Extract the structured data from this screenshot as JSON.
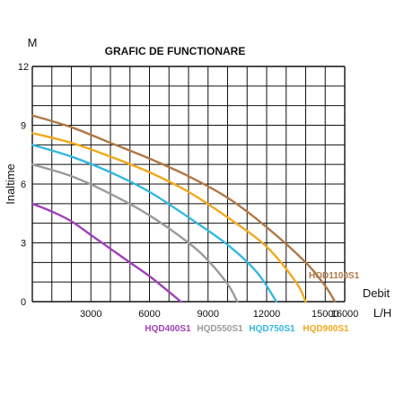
{
  "chart_data": {
    "type": "line",
    "title": "GRAFIC DE FUNCTIONARE",
    "ylabel": "Inaltime",
    "yunit": "M",
    "xlabel": "Debit",
    "xunit": "L/H",
    "xlim": [
      0,
      16000
    ],
    "ylim": [
      0,
      12
    ],
    "grid": true,
    "xticks": [
      3000,
      6000,
      9000,
      12000,
      15000,
      16000
    ],
    "yticks": [
      0,
      3,
      6,
      9,
      12
    ],
    "series": [
      {
        "name": "HQD400S1",
        "color": "#a040b8",
        "points": [
          [
            0,
            5.0
          ],
          [
            1000,
            4.6
          ],
          [
            2000,
            4.1
          ],
          [
            3000,
            3.4
          ],
          [
            4000,
            2.7
          ],
          [
            5000,
            2.0
          ],
          [
            6000,
            1.3
          ],
          [
            7000,
            0.5
          ],
          [
            7600,
            0
          ]
        ]
      },
      {
        "name": "HQD550S1",
        "color": "#9a9a9a",
        "points": [
          [
            0,
            7.0
          ],
          [
            2000,
            6.4
          ],
          [
            4000,
            5.5
          ],
          [
            6000,
            4.4
          ],
          [
            8000,
            3.0
          ],
          [
            9000,
            2.1
          ],
          [
            10000,
            0.9
          ],
          [
            10500,
            0
          ]
        ]
      },
      {
        "name": "HQD750S1",
        "color": "#33b8e0",
        "points": [
          [
            0,
            8.0
          ],
          [
            2000,
            7.4
          ],
          [
            4000,
            6.6
          ],
          [
            6000,
            5.6
          ],
          [
            8000,
            4.3
          ],
          [
            10000,
            2.9
          ],
          [
            11500,
            1.5
          ],
          [
            12500,
            0
          ]
        ]
      },
      {
        "name": "HQD900S1",
        "color": "#f2a81c",
        "points": [
          [
            0,
            8.6
          ],
          [
            2000,
            8.1
          ],
          [
            4000,
            7.4
          ],
          [
            6000,
            6.6
          ],
          [
            8000,
            5.6
          ],
          [
            10000,
            4.3
          ],
          [
            12000,
            2.8
          ],
          [
            13500,
            1.0
          ],
          [
            14000,
            0
          ]
        ]
      },
      {
        "name": "HQD1100S1",
        "color": "#b07848",
        "points": [
          [
            0,
            9.5
          ],
          [
            2000,
            8.9
          ],
          [
            4000,
            8.1
          ],
          [
            6000,
            7.3
          ],
          [
            8000,
            6.4
          ],
          [
            10000,
            5.3
          ],
          [
            12000,
            3.8
          ],
          [
            14000,
            2.0
          ],
          [
            15000,
            0.8
          ],
          [
            15500,
            0
          ]
        ]
      }
    ],
    "legend": [
      {
        "label": "HQD400S1",
        "color": "#a040b8"
      },
      {
        "label": "HQD550S1",
        "color": "#9a9a9a"
      },
      {
        "label": "HQD750S1",
        "color": "#33b8e0"
      },
      {
        "label": "HQD900S1",
        "color": "#f2a81c"
      }
    ],
    "curve_label": {
      "label": "HQD1100S1",
      "color": "#b07848"
    }
  }
}
